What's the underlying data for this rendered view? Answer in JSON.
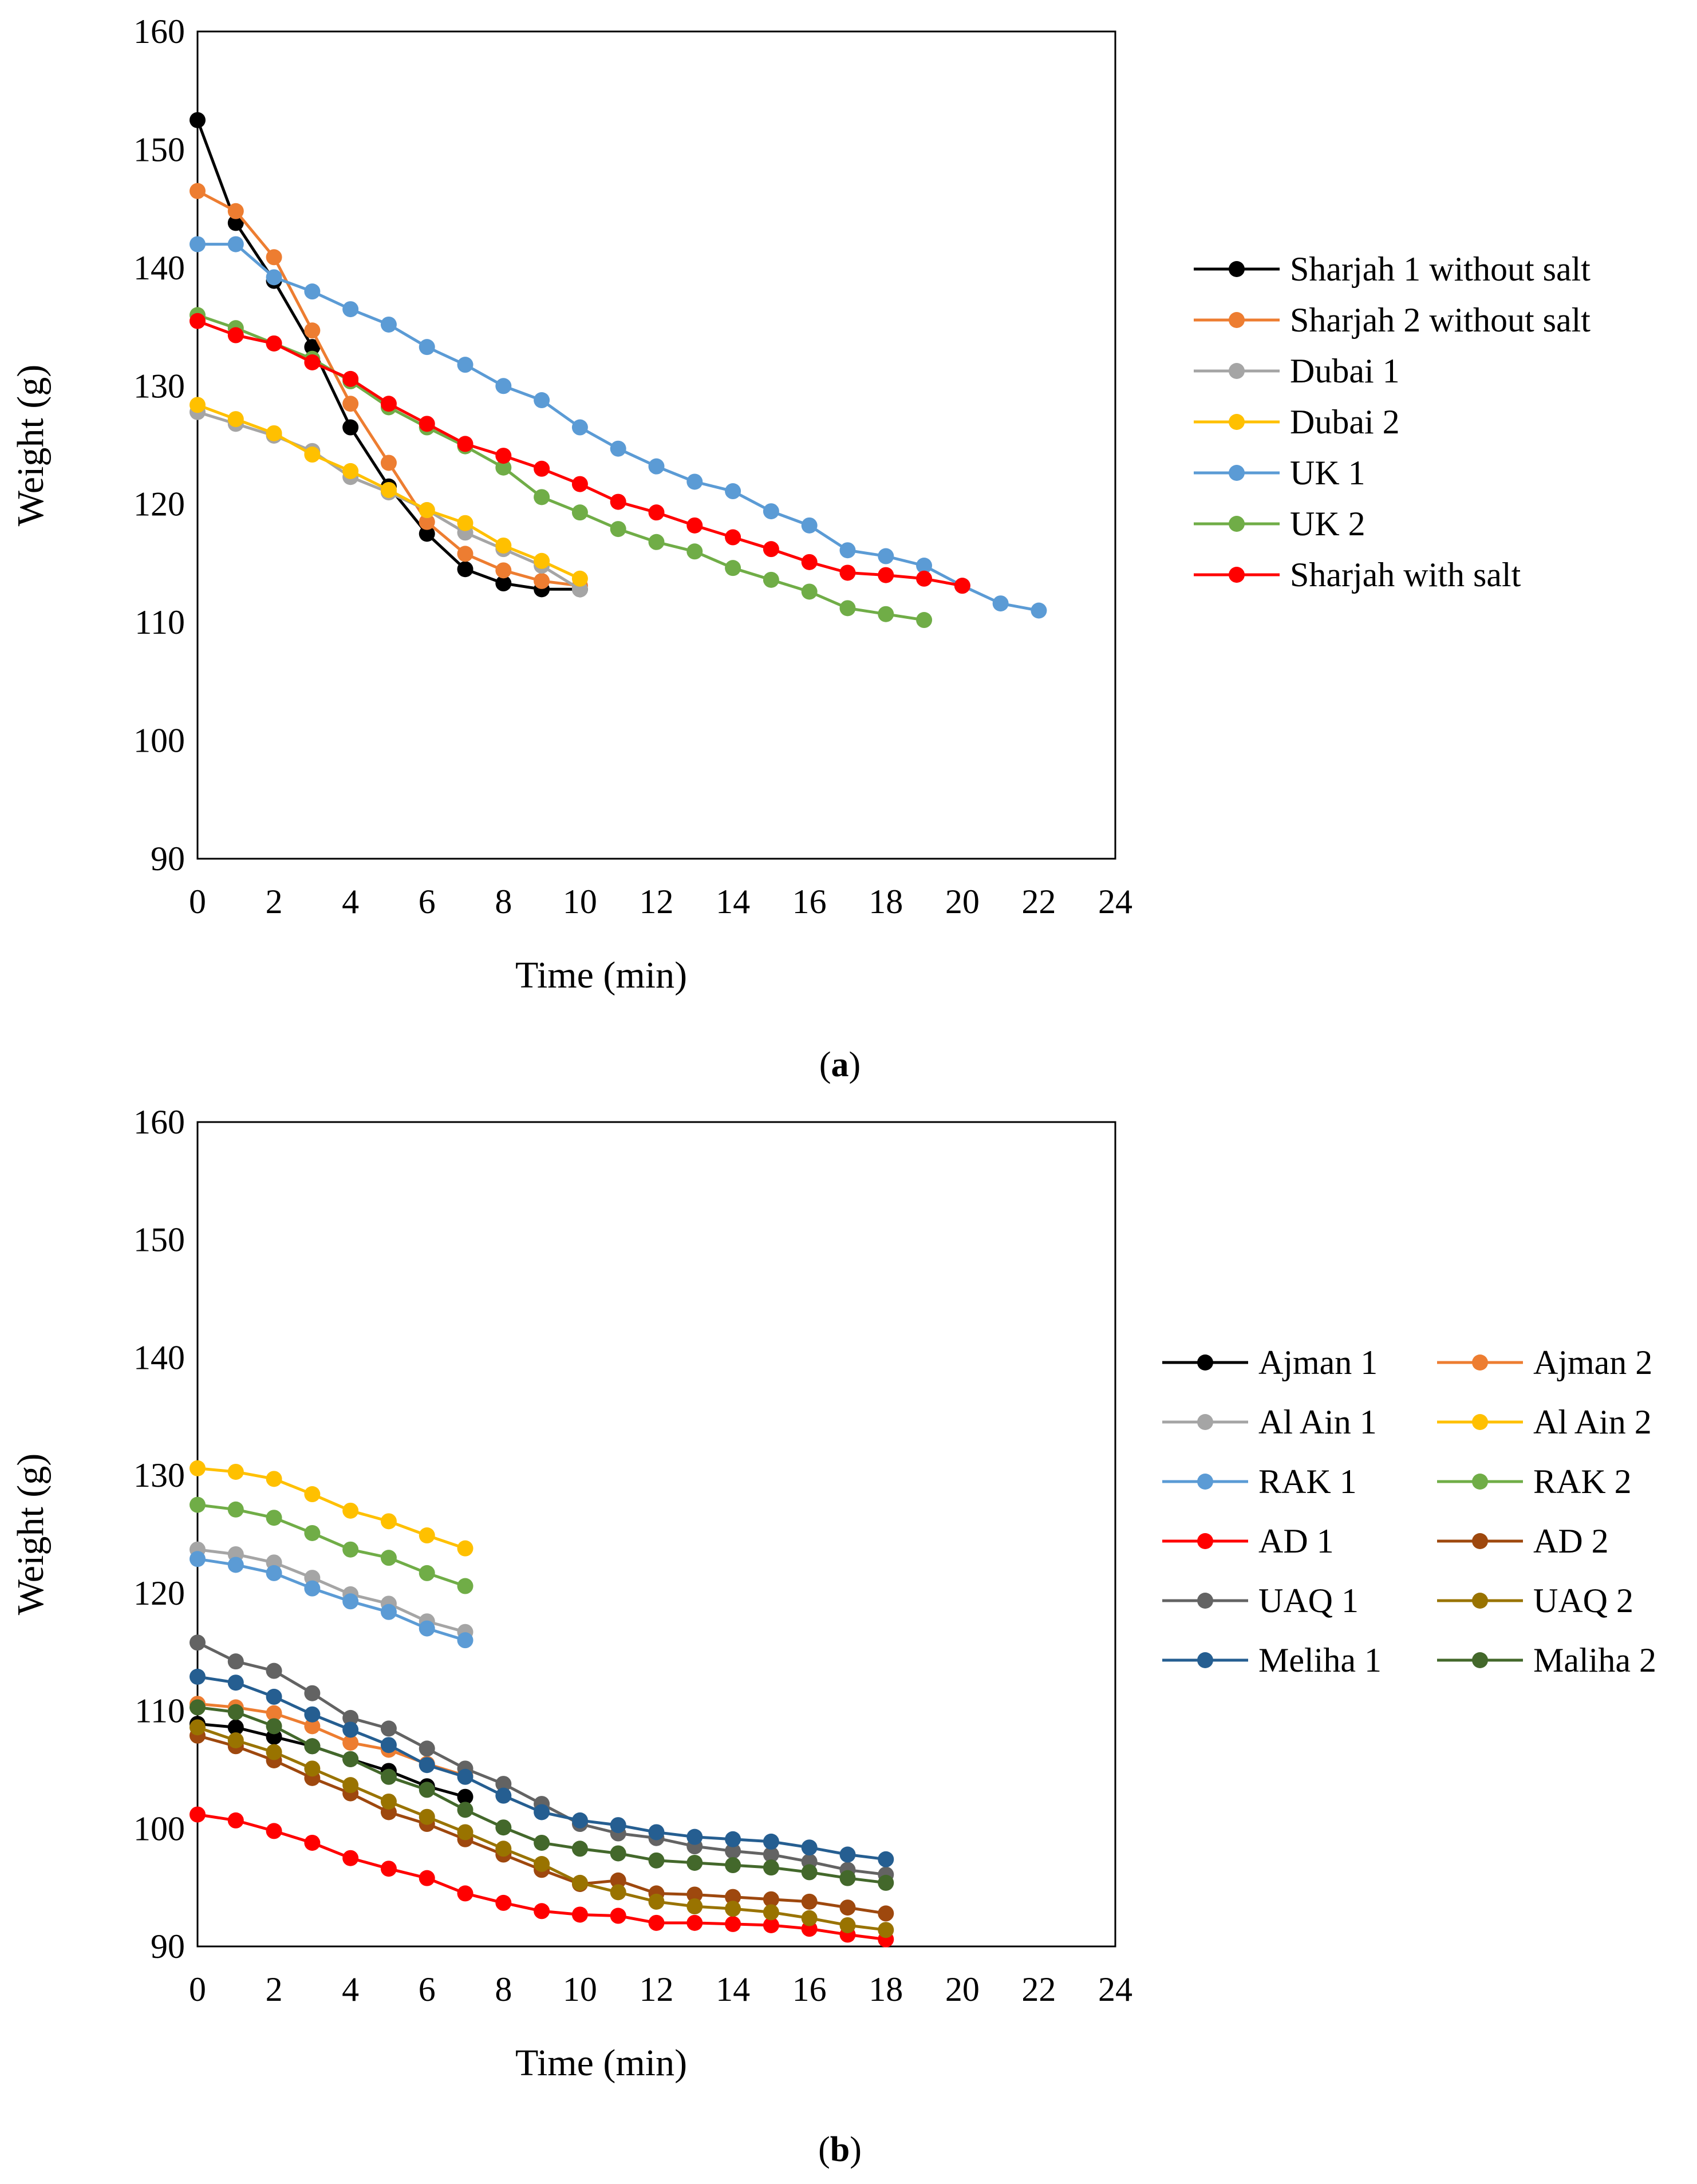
{
  "chart_data": [
    {
      "type": "line",
      "panel_label": "a",
      "xlabel": "Time (min)",
      "ylabel": "Weight (g)",
      "xlim": [
        0,
        24
      ],
      "ylim": [
        90,
        160
      ],
      "xticks": [
        0,
        2,
        4,
        6,
        8,
        10,
        12,
        14,
        16,
        18,
        20,
        22,
        24
      ],
      "yticks": [
        90,
        100,
        110,
        120,
        130,
        140,
        150,
        160
      ],
      "legend_position": "right",
      "series": [
        {
          "name": "Sharjah 1 without salt",
          "color": "#000000",
          "x": [
            0,
            1,
            2,
            3,
            4,
            5,
            6,
            7,
            8,
            9,
            10
          ],
          "values": [
            152.5,
            143.8,
            138.9,
            133.3,
            126.5,
            121.5,
            117.5,
            114.5,
            113.3,
            112.8,
            112.8
          ]
        },
        {
          "name": "Sharjah 2 without salt",
          "color": "#ED7D31",
          "x": [
            0,
            1,
            2,
            3,
            4,
            5,
            6,
            7,
            8,
            9,
            10
          ],
          "values": [
            146.5,
            144.8,
            140.9,
            134.7,
            128.5,
            123.5,
            118.5,
            115.8,
            114.4,
            113.5,
            113.1
          ]
        },
        {
          "name": "Dubai 1",
          "color": "#A5A5A5",
          "x": [
            0,
            1,
            2,
            3,
            4,
            5,
            6,
            7,
            8,
            9,
            10
          ],
          "values": [
            127.8,
            126.8,
            125.8,
            124.5,
            122.3,
            121.0,
            119.5,
            117.6,
            116.2,
            114.8,
            112.8
          ]
        },
        {
          "name": "Dubai 2",
          "color": "#FFC000",
          "x": [
            0,
            1,
            2,
            3,
            4,
            5,
            6,
            7,
            8,
            9,
            10
          ],
          "values": [
            128.4,
            127.2,
            126.0,
            124.2,
            122.8,
            121.2,
            119.5,
            118.4,
            116.5,
            115.2,
            113.7
          ]
        },
        {
          "name": "UK 1",
          "color": "#5B9BD5",
          "x": [
            0,
            1,
            2,
            3,
            4,
            5,
            6,
            7,
            8,
            9,
            10,
            11,
            12,
            13,
            14,
            15,
            16,
            17,
            18,
            19,
            20,
            21,
            22
          ],
          "values": [
            142.0,
            142.0,
            139.2,
            138.0,
            136.5,
            135.2,
            133.3,
            131.8,
            130.0,
            128.8,
            126.5,
            124.7,
            123.2,
            121.9,
            121.1,
            119.4,
            118.2,
            116.1,
            115.6,
            114.8,
            113.1,
            111.6,
            111.0
          ]
        },
        {
          "name": "UK 2",
          "color": "#70AD47",
          "x": [
            0,
            1,
            2,
            3,
            4,
            5,
            6,
            7,
            8,
            9,
            10,
            11,
            12,
            13,
            14,
            15,
            16,
            17,
            18,
            19
          ],
          "values": [
            136.0,
            134.9,
            133.6,
            132.3,
            130.4,
            128.2,
            126.5,
            124.9,
            123.1,
            120.6,
            119.3,
            117.9,
            116.8,
            116.0,
            114.6,
            113.6,
            112.6,
            111.2,
            110.7,
            110.2
          ]
        },
        {
          "name": "Sharjah with salt",
          "color": "#FF0000",
          "x": [
            0,
            1,
            2,
            3,
            4,
            5,
            6,
            7,
            8,
            9,
            10,
            11,
            12,
            13,
            14,
            15,
            16,
            17,
            18,
            19,
            20
          ],
          "values": [
            135.5,
            134.3,
            133.6,
            132.0,
            130.6,
            128.5,
            126.8,
            125.1,
            124.1,
            123.0,
            121.7,
            120.2,
            119.3,
            118.2,
            117.2,
            116.2,
            115.1,
            114.2,
            114.0,
            113.7,
            113.1
          ]
        }
      ]
    },
    {
      "type": "line",
      "panel_label": "b",
      "xlabel": "Time (min)",
      "ylabel": "Weight (g)",
      "xlim": [
        0,
        24
      ],
      "ylim": [
        90,
        160
      ],
      "xticks": [
        0,
        2,
        4,
        6,
        8,
        10,
        12,
        14,
        16,
        18,
        20,
        22,
        24
      ],
      "yticks": [
        90,
        100,
        110,
        120,
        130,
        140,
        150,
        160
      ],
      "legend_position": "right",
      "legend_columns": 2,
      "series": [
        {
          "name": "Ajman 1",
          "color": "#000000",
          "x": [
            0,
            1,
            2,
            3,
            4,
            5,
            6,
            7
          ],
          "values": [
            108.9,
            108.6,
            107.8,
            107.0,
            105.9,
            104.9,
            103.6,
            102.7
          ]
        },
        {
          "name": "Ajman 2",
          "color": "#ED7D31",
          "x": [
            0,
            1,
            2,
            3,
            4,
            5,
            6,
            7
          ],
          "values": [
            110.6,
            110.3,
            109.8,
            108.7,
            107.3,
            106.7,
            105.5,
            104.5
          ]
        },
        {
          "name": "Al Ain 1",
          "color": "#A5A5A5",
          "x": [
            0,
            1,
            2,
            3,
            4,
            5,
            6,
            7
          ],
          "values": [
            123.7,
            123.3,
            122.6,
            121.3,
            119.9,
            119.1,
            117.6,
            116.7
          ]
        },
        {
          "name": "Al Ain 2",
          "color": "#FFC000",
          "x": [
            0,
            1,
            2,
            3,
            4,
            5,
            6,
            7
          ],
          "values": [
            130.6,
            130.3,
            129.7,
            128.4,
            127.0,
            126.1,
            124.9,
            123.8
          ]
        },
        {
          "name": "RAK 1",
          "color": "#5B9BD5",
          "x": [
            0,
            1,
            2,
            3,
            4,
            5,
            6,
            7
          ],
          "values": [
            122.9,
            122.4,
            121.7,
            120.4,
            119.3,
            118.4,
            117.0,
            116.0
          ]
        },
        {
          "name": "RAK 2",
          "color": "#70AD47",
          "x": [
            0,
            1,
            2,
            3,
            4,
            5,
            6,
            7
          ],
          "values": [
            127.5,
            127.1,
            126.4,
            125.1,
            123.7,
            123.0,
            121.7,
            120.6
          ]
        },
        {
          "name": "AD 1",
          "color": "#FF0000",
          "x": [
            0,
            1,
            2,
            3,
            4,
            5,
            6,
            7,
            8,
            9,
            10,
            11,
            12,
            13,
            14,
            15,
            16,
            17,
            18
          ],
          "values": [
            101.2,
            100.7,
            99.8,
            98.8,
            97.5,
            96.6,
            95.8,
            94.5,
            93.7,
            93.0,
            92.7,
            92.6,
            92.0,
            92.0,
            91.9,
            91.8,
            91.5,
            91.0,
            90.6
          ]
        },
        {
          "name": "AD 2",
          "color": "#9E480E",
          "x": [
            0,
            1,
            2,
            3,
            4,
            5,
            6,
            7,
            8,
            9,
            10,
            11,
            12,
            13,
            14,
            15,
            16,
            17,
            18
          ],
          "values": [
            107.9,
            107.0,
            105.8,
            104.3,
            103.0,
            101.4,
            100.4,
            99.1,
            97.8,
            96.5,
            95.3,
            95.6,
            94.5,
            94.4,
            94.2,
            94.0,
            93.8,
            93.3,
            92.8
          ]
        },
        {
          "name": "UAQ 1",
          "color": "#636363",
          "x": [
            0,
            1,
            2,
            3,
            4,
            5,
            6,
            7,
            8,
            9,
            10,
            11,
            12,
            13,
            14,
            15,
            16,
            17,
            18
          ],
          "values": [
            115.8,
            114.2,
            113.4,
            111.5,
            109.4,
            108.5,
            106.8,
            105.1,
            103.8,
            102.1,
            100.4,
            99.6,
            99.2,
            98.5,
            98.1,
            97.8,
            97.2,
            96.5,
            96.1
          ]
        },
        {
          "name": "UAQ 2",
          "color": "#997300",
          "x": [
            0,
            1,
            2,
            3,
            4,
            5,
            6,
            7,
            8,
            9,
            10,
            11,
            12,
            13,
            14,
            15,
            16,
            17,
            18
          ],
          "values": [
            108.6,
            107.5,
            106.5,
            105.1,
            103.7,
            102.3,
            101.0,
            99.7,
            98.3,
            97.0,
            95.4,
            94.6,
            93.8,
            93.4,
            93.2,
            92.9,
            92.4,
            91.8,
            91.4
          ]
        },
        {
          "name": "Meliha 1",
          "color": "#255E91",
          "x": [
            0,
            1,
            2,
            3,
            4,
            5,
            6,
            7,
            8,
            9,
            10,
            11,
            12,
            13,
            14,
            15,
            16,
            17,
            18
          ],
          "values": [
            112.9,
            112.4,
            111.2,
            109.7,
            108.4,
            107.1,
            105.4,
            104.4,
            102.8,
            101.4,
            100.7,
            100.3,
            99.7,
            99.3,
            99.1,
            98.9,
            98.4,
            97.8,
            97.4
          ]
        },
        {
          "name": "Maliha 2",
          "color": "#43682B",
          "x": [
            0,
            1,
            2,
            3,
            4,
            5,
            6,
            7,
            8,
            9,
            10,
            11,
            12,
            13,
            14,
            15,
            16,
            17,
            18
          ],
          "values": [
            110.3,
            109.9,
            108.7,
            107.0,
            105.9,
            104.4,
            103.3,
            101.6,
            100.1,
            98.8,
            98.3,
            97.9,
            97.3,
            97.1,
            96.9,
            96.7,
            96.3,
            95.8,
            95.4
          ]
        }
      ]
    }
  ]
}
